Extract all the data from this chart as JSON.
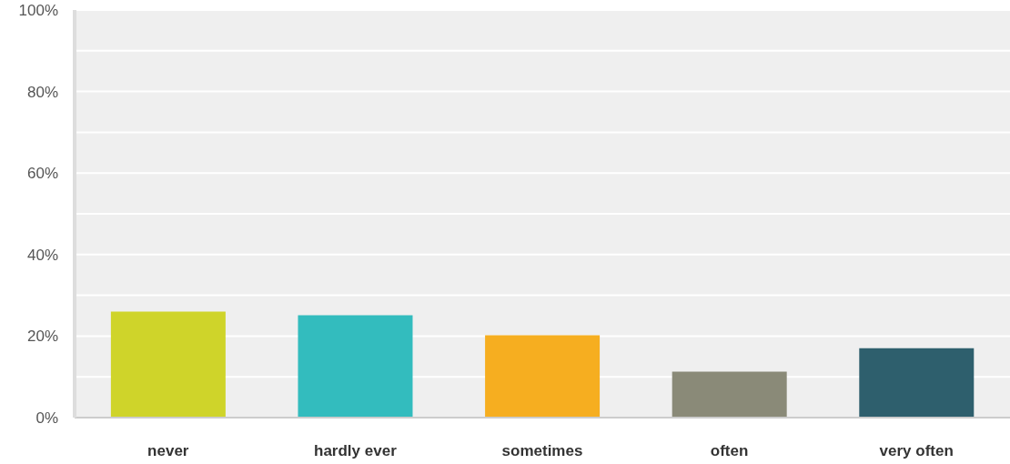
{
  "chart_data": {
    "type": "bar",
    "categories": [
      "never",
      "hardly ever",
      "sometimes",
      "often",
      "very often"
    ],
    "values": [
      26,
      25.1,
      20.2,
      11.3,
      17
    ],
    "colors": [
      "#cfd42a",
      "#33bcbe",
      "#f6ae20",
      "#8a8a78",
      "#2e5f6d"
    ],
    "ylim": [
      0,
      100
    ],
    "yticks": [
      {
        "value": 0,
        "label": "0%"
      },
      {
        "value": 10,
        "label": null
      },
      {
        "value": 20,
        "label": "20%"
      },
      {
        "value": 30,
        "label": null
      },
      {
        "value": 40,
        "label": "40%"
      },
      {
        "value": 50,
        "label": null
      },
      {
        "value": 60,
        "label": "60%"
      },
      {
        "value": 70,
        "label": null
      },
      {
        "value": 80,
        "label": "80%"
      },
      {
        "value": 90,
        "label": null
      },
      {
        "value": 100,
        "label": "100%"
      }
    ],
    "grid": "y"
  }
}
